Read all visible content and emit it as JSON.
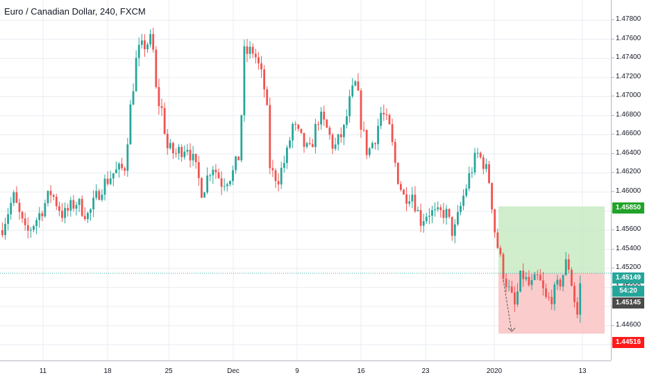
{
  "title": "Euro / Canadian Dollar, 240, FXCM",
  "colors": {
    "up": "#26a69a",
    "down": "#ef5350",
    "grid": "#e9ecf1",
    "profit_zone": "#c8ebc3",
    "loss_zone": "#f9c3c3",
    "current_line": "#26a69a",
    "badge_target": "#21a32a",
    "badge_stop": "#ff1a1a",
    "badge_entry": "#26a69a",
    "badge_last": "#4a4a4a",
    "badge_timer": "#26a69a"
  },
  "price_axis": {
    "ticks": [
      "1.47800",
      "1.47600",
      "1.47400",
      "1.47200",
      "1.47000",
      "1.46800",
      "1.46600",
      "1.46400",
      "1.46200",
      "1.46000",
      "1.45800",
      "1.45600",
      "1.45400",
      "1.45200",
      "1.45000",
      "1.44800",
      "1.44600",
      "1.44400"
    ]
  },
  "time_axis": {
    "ticks": [
      "11",
      "18",
      "25",
      "Dec",
      "9",
      "16",
      "23",
      "2020",
      "13"
    ]
  },
  "badges": {
    "target": "1.45850",
    "entry": "1.45149",
    "timer": "54:20",
    "last": "1.45145",
    "stop": "1.44516"
  },
  "chart_data": {
    "type": "candlestick",
    "instrument": "Euro / Canadian Dollar",
    "timeframe": "240",
    "source": "FXCM",
    "ylim": [
      1.443,
      1.479
    ],
    "x_ticks": [
      "11",
      "18",
      "25",
      "Dec",
      "9",
      "16",
      "23",
      "2020",
      "13"
    ],
    "price_path": [
      [
        0,
        1.456
      ],
      [
        18,
        1.4595
      ],
      [
        36,
        1.4555
      ],
      [
        54,
        1.4575
      ],
      [
        72,
        1.46
      ],
      [
        90,
        1.4575
      ],
      [
        108,
        1.459
      ],
      [
        126,
        1.4575
      ],
      [
        144,
        1.4605
      ],
      [
        162,
        1.462
      ],
      [
        178,
        1.4625
      ],
      [
        186,
        1.4685
      ],
      [
        196,
        1.4745
      ],
      [
        208,
        1.4755
      ],
      [
        218,
        1.476
      ],
      [
        224,
        1.47
      ],
      [
        232,
        1.4685
      ],
      [
        240,
        1.4645
      ],
      [
        252,
        1.464
      ],
      [
        268,
        1.465
      ],
      [
        278,
        1.463
      ],
      [
        290,
        1.46
      ],
      [
        304,
        1.463
      ],
      [
        318,
        1.461
      ],
      [
        334,
        1.462
      ],
      [
        344,
        1.464
      ],
      [
        350,
        1.4745
      ],
      [
        364,
        1.4748
      ],
      [
        374,
        1.4725
      ],
      [
        382,
        1.47
      ],
      [
        388,
        1.462
      ],
      [
        400,
        1.4615
      ],
      [
        412,
        1.464
      ],
      [
        420,
        1.467
      ],
      [
        432,
        1.4655
      ],
      [
        444,
        1.464
      ],
      [
        458,
        1.468
      ],
      [
        470,
        1.4665
      ],
      [
        480,
        1.4645
      ],
      [
        494,
        1.4665
      ],
      [
        504,
        1.47
      ],
      [
        512,
        1.4715
      ],
      [
        518,
        1.4675
      ],
      [
        528,
        1.464
      ],
      [
        540,
        1.466
      ],
      [
        548,
        1.4685
      ],
      [
        560,
        1.4665
      ],
      [
        570,
        1.462
      ],
      [
        580,
        1.4595
      ],
      [
        592,
        1.46
      ],
      [
        604,
        1.457
      ],
      [
        616,
        1.458
      ],
      [
        628,
        1.4575
      ],
      [
        640,
        1.458
      ],
      [
        652,
        1.4555
      ],
      [
        664,
        1.459
      ],
      [
        676,
        1.462
      ],
      [
        686,
        1.464
      ],
      [
        696,
        1.463
      ],
      [
        704,
        1.461
      ],
      [
        712,
        1.4555
      ],
      [
        722,
        1.452
      ],
      [
        730,
        1.45
      ],
      [
        740,
        1.448
      ],
      [
        750,
        1.4515
      ],
      [
        762,
        1.45
      ],
      [
        774,
        1.451
      ],
      [
        786,
        1.4485
      ],
      [
        798,
        1.4495
      ],
      [
        808,
        1.451
      ],
      [
        816,
        1.453
      ],
      [
        822,
        1.4505
      ],
      [
        830,
        1.447
      ],
      [
        836,
        1.4515
      ]
    ],
    "long_position": {
      "entry": 1.45149,
      "target": 1.4585,
      "stop": 1.44516,
      "last_price": 1.45145,
      "bar_timer": "54:20"
    },
    "projection": {
      "from": 1.4508,
      "to": 1.4454
    },
    "grid": true
  }
}
